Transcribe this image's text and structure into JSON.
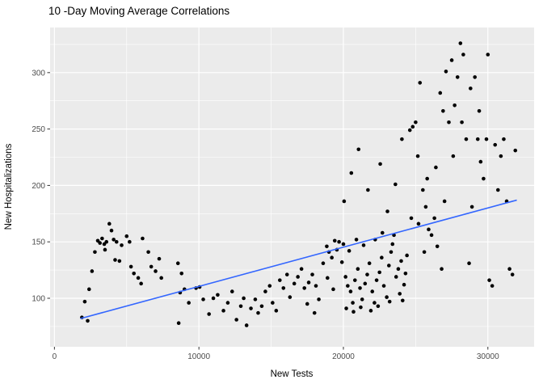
{
  "chart_data": {
    "type": "scatter",
    "title": "10 -Day Moving Average Correlations",
    "xlabel": "New Tests",
    "ylabel": "New Hospitalizations",
    "xlim": [
      -300,
      33200
    ],
    "ylim": [
      57,
      340
    ],
    "x_ticks": [
      0,
      10000,
      20000,
      30000
    ],
    "y_ticks": [
      100,
      150,
      200,
      250,
      300
    ],
    "x_minor_ticks": [
      5000,
      15000,
      25000
    ],
    "y_minor_ticks": [
      75,
      125,
      175,
      225,
      275,
      325
    ],
    "grid": true,
    "legend_position": "none",
    "panel_background": "#EBEBEB",
    "grid_color": "#FFFFFF",
    "point_color": "#000000",
    "tick_color": "#333333",
    "tick_label_color": "#4D4D4D",
    "trend_line": {
      "color": "#3366FF",
      "x": [
        1800,
        32000
      ],
      "y": [
        82,
        187
      ]
    },
    "points": [
      [
        1900,
        83
      ],
      [
        2300,
        80
      ],
      [
        2100,
        97
      ],
      [
        2400,
        108
      ],
      [
        2600,
        124
      ],
      [
        2800,
        141
      ],
      [
        3000,
        151
      ],
      [
        3150,
        149
      ],
      [
        3300,
        153
      ],
      [
        3450,
        148
      ],
      [
        3600,
        150
      ],
      [
        3500,
        143
      ],
      [
        3800,
        166
      ],
      [
        3950,
        160
      ],
      [
        4100,
        152
      ],
      [
        4300,
        150
      ],
      [
        4200,
        134
      ],
      [
        4500,
        133
      ],
      [
        4650,
        147
      ],
      [
        5000,
        155
      ],
      [
        5200,
        150
      ],
      [
        5300,
        128
      ],
      [
        5500,
        122
      ],
      [
        5800,
        118
      ],
      [
        6000,
        113
      ],
      [
        6100,
        153
      ],
      [
        6500,
        141
      ],
      [
        6700,
        128
      ],
      [
        7000,
        124
      ],
      [
        7250,
        135
      ],
      [
        7400,
        118
      ],
      [
        8550,
        131
      ],
      [
        8800,
        122
      ],
      [
        8700,
        105
      ],
      [
        9000,
        108
      ],
      [
        8600,
        78
      ],
      [
        9300,
        96
      ],
      [
        9800,
        109
      ],
      [
        10050,
        110
      ],
      [
        10300,
        99
      ],
      [
        10700,
        86
      ],
      [
        11000,
        100
      ],
      [
        11300,
        103
      ],
      [
        11700,
        89
      ],
      [
        12000,
        96
      ],
      [
        12300,
        106
      ],
      [
        12600,
        81
      ],
      [
        12900,
        93
      ],
      [
        13100,
        100
      ],
      [
        13300,
        76
      ],
      [
        13600,
        91
      ],
      [
        13900,
        99
      ],
      [
        14100,
        87
      ],
      [
        14350,
        93
      ],
      [
        14600,
        106
      ],
      [
        14900,
        111
      ],
      [
        15100,
        96
      ],
      [
        15350,
        89
      ],
      [
        15600,
        116
      ],
      [
        15850,
        109
      ],
      [
        16100,
        121
      ],
      [
        16300,
        101
      ],
      [
        16600,
        113
      ],
      [
        16850,
        119
      ],
      [
        17100,
        126
      ],
      [
        17300,
        109
      ],
      [
        17600,
        114
      ],
      [
        17850,
        121
      ],
      [
        18100,
        111
      ],
      [
        18300,
        99
      ],
      [
        18600,
        131
      ],
      [
        18850,
        146
      ],
      [
        19000,
        141
      ],
      [
        19200,
        136
      ],
      [
        19400,
        151
      ],
      [
        19550,
        143
      ],
      [
        17500,
        95
      ],
      [
        18000,
        87
      ],
      [
        18900,
        118
      ],
      [
        19300,
        108
      ],
      [
        19700,
        150
      ],
      [
        19900,
        132
      ],
      [
        20000,
        148
      ],
      [
        20150,
        119
      ],
      [
        20300,
        111
      ],
      [
        20500,
        106
      ],
      [
        20650,
        96
      ],
      [
        20800,
        116
      ],
      [
        21000,
        126
      ],
      [
        21150,
        109
      ],
      [
        21300,
        99
      ],
      [
        21500,
        113
      ],
      [
        21650,
        121
      ],
      [
        21800,
        131
      ],
      [
        22000,
        106
      ],
      [
        22150,
        96
      ],
      [
        22300,
        116
      ],
      [
        22500,
        123
      ],
      [
        22650,
        136
      ],
      [
        22800,
        111
      ],
      [
        23000,
        101
      ],
      [
        23150,
        129
      ],
      [
        23300,
        141
      ],
      [
        23500,
        156
      ],
      [
        23650,
        119
      ],
      [
        23800,
        126
      ],
      [
        24000,
        133
      ],
      [
        24200,
        112
      ],
      [
        20200,
        91
      ],
      [
        20700,
        88
      ],
      [
        21200,
        92
      ],
      [
        21900,
        89
      ],
      [
        22400,
        93
      ],
      [
        23200,
        97
      ],
      [
        23900,
        104
      ],
      [
        24100,
        98
      ],
      [
        20400,
        142
      ],
      [
        20900,
        152
      ],
      [
        21400,
        147
      ],
      [
        22200,
        152
      ],
      [
        22700,
        158
      ],
      [
        23400,
        148
      ],
      [
        24300,
        122
      ],
      [
        24400,
        138
      ],
      [
        20050,
        186
      ],
      [
        20550,
        211
      ],
      [
        21050,
        232
      ],
      [
        21700,
        196
      ],
      [
        22550,
        219
      ],
      [
        23050,
        177
      ],
      [
        23600,
        201
      ],
      [
        24050,
        241
      ],
      [
        24600,
        249
      ],
      [
        24800,
        252
      ],
      [
        25000,
        256
      ],
      [
        25150,
        226
      ],
      [
        25300,
        291
      ],
      [
        25500,
        196
      ],
      [
        25700,
        181
      ],
      [
        25900,
        161
      ],
      [
        26100,
        156
      ],
      [
        26300,
        171
      ],
      [
        26500,
        146
      ],
      [
        26700,
        282
      ],
      [
        26900,
        266
      ],
      [
        27100,
        301
      ],
      [
        27300,
        256
      ],
      [
        27500,
        311
      ],
      [
        27700,
        271
      ],
      [
        27900,
        296
      ],
      [
        28100,
        326
      ],
      [
        28300,
        316
      ],
      [
        28500,
        241
      ],
      [
        28700,
        131
      ],
      [
        28900,
        181
      ],
      [
        29100,
        296
      ],
      [
        29300,
        241
      ],
      [
        29500,
        221
      ],
      [
        29700,
        206
      ],
      [
        29900,
        241
      ],
      [
        30100,
        116
      ],
      [
        30300,
        111
      ],
      [
        30500,
        236
      ],
      [
        30700,
        196
      ],
      [
        30900,
        226
      ],
      [
        31100,
        241
      ],
      [
        31300,
        186
      ],
      [
        31500,
        126
      ],
      [
        31700,
        121
      ],
      [
        31900,
        231
      ],
      [
        25200,
        166
      ],
      [
        25800,
        206
      ],
      [
        26400,
        216
      ],
      [
        27000,
        186
      ],
      [
        27600,
        226
      ],
      [
        28200,
        256
      ],
      [
        28800,
        286
      ],
      [
        29400,
        266
      ],
      [
        30000,
        316
      ],
      [
        24700,
        171
      ],
      [
        25600,
        141
      ],
      [
        26800,
        126
      ]
    ]
  }
}
